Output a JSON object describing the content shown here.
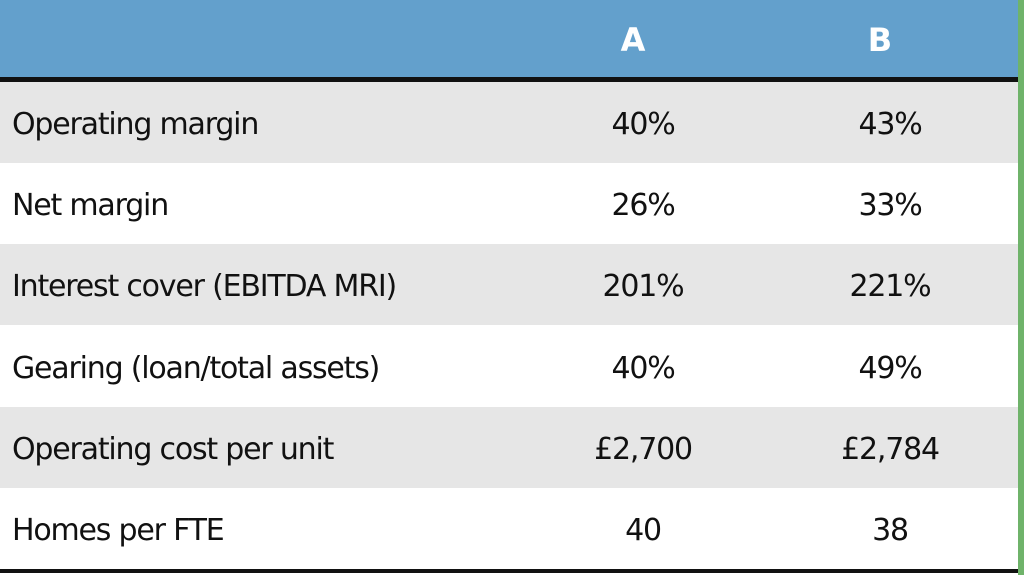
{
  "header": {
    "columns": [
      "A",
      "B"
    ]
  },
  "table": {
    "rows": [
      [
        "Operating margin",
        "40%",
        "43%"
      ],
      [
        "Net margin",
        "26%",
        "33%"
      ],
      [
        "Interest cover (EBITDA MRI)",
        "201%",
        "221%"
      ],
      [
        "Gearing (loan/total assets)",
        "40%",
        "49%"
      ],
      [
        "Operating cost per unit",
        "£2,700",
        "£2,784"
      ],
      [
        "Homes per FTE",
        "40",
        "38"
      ]
    ]
  }
}
